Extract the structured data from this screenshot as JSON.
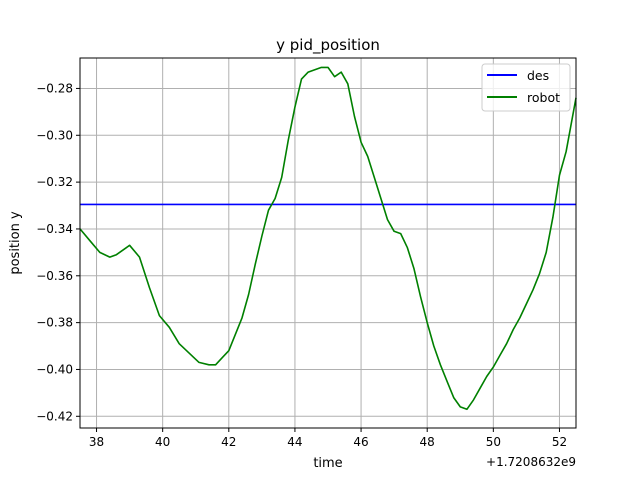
{
  "chart_data": {
    "type": "line",
    "title": "y pid_position",
    "xlabel": "time",
    "ylabel": "position y",
    "x_offset_label": "+1.7208632e9",
    "xlim": [
      37.5,
      52.5
    ],
    "ylim": [
      -0.425,
      -0.267
    ],
    "x_ticks": [
      38,
      40,
      42,
      44,
      46,
      48,
      50,
      52
    ],
    "y_ticks": [
      -0.42,
      -0.4,
      -0.38,
      -0.36,
      -0.34,
      -0.32,
      -0.3,
      -0.28
    ],
    "grid": true,
    "legend_position": "top-right",
    "series": [
      {
        "name": "des",
        "color": "#0000ff",
        "x": [
          37.5,
          52.5
        ],
        "y": [
          -0.3295,
          -0.3295
        ]
      },
      {
        "name": "robot",
        "color": "#008000",
        "x": [
          37.5,
          37.8,
          38.1,
          38.4,
          38.6,
          38.9,
          39.0,
          39.3,
          39.6,
          39.9,
          40.2,
          40.5,
          40.8,
          41.1,
          41.4,
          41.6,
          41.8,
          42.0,
          42.2,
          42.4,
          42.6,
          42.8,
          43.0,
          43.2,
          43.4,
          43.6,
          43.8,
          44.0,
          44.2,
          44.4,
          44.6,
          44.8,
          45.0,
          45.2,
          45.4,
          45.6,
          45.8,
          46.0,
          46.2,
          46.4,
          46.6,
          46.8,
          47.0,
          47.2,
          47.4,
          47.6,
          47.8,
          48.0,
          48.2,
          48.4,
          48.6,
          48.8,
          49.0,
          49.2,
          49.4,
          49.6,
          49.8,
          50.0,
          50.2,
          50.4,
          50.6,
          50.8,
          51.0,
          51.2,
          51.4,
          51.6,
          51.8,
          52.0,
          52.2,
          52.5
        ],
        "y": [
          -0.34,
          -0.345,
          -0.35,
          -0.352,
          -0.351,
          -0.348,
          -0.347,
          -0.352,
          -0.365,
          -0.377,
          -0.382,
          -0.389,
          -0.393,
          -0.397,
          -0.398,
          -0.398,
          -0.395,
          -0.392,
          -0.385,
          -0.378,
          -0.368,
          -0.355,
          -0.343,
          -0.332,
          -0.327,
          -0.318,
          -0.302,
          -0.288,
          -0.276,
          -0.273,
          -0.272,
          -0.271,
          -0.271,
          -0.275,
          -0.273,
          -0.278,
          -0.292,
          -0.303,
          -0.309,
          -0.318,
          -0.327,
          -0.336,
          -0.341,
          -0.342,
          -0.348,
          -0.357,
          -0.369,
          -0.38,
          -0.39,
          -0.398,
          -0.405,
          -0.412,
          -0.416,
          -0.417,
          -0.413,
          -0.408,
          -0.403,
          -0.399,
          -0.394,
          -0.389,
          -0.383,
          -0.378,
          -0.372,
          -0.366,
          -0.359,
          -0.35,
          -0.335,
          -0.317,
          -0.307,
          -0.284
        ]
      }
    ]
  }
}
